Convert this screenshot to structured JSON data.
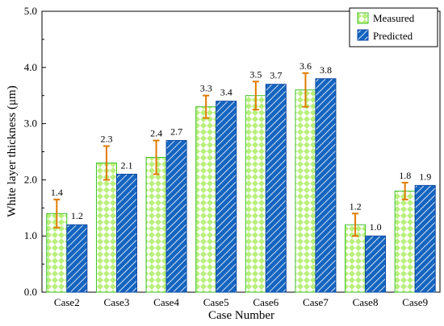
{
  "chart_data": {
    "type": "bar",
    "title": "",
    "xlabel": "Case Number",
    "ylabel": "White layer thickness (μm)",
    "ylim": [
      0,
      5.0
    ],
    "yticks": [
      "0.0",
      "1.0",
      "2.0",
      "3.0",
      "4.0",
      "5.0"
    ],
    "categories": [
      "Case2",
      "Case3",
      "Case4",
      "Case5",
      "Case6",
      "Case7",
      "Case8",
      "Case9"
    ],
    "series": [
      {
        "name": "Measured",
        "values": [
          1.4,
          2.3,
          2.4,
          3.3,
          3.5,
          3.6,
          1.2,
          1.8
        ],
        "labels": [
          "1.4",
          "2.3",
          "2.4",
          "3.3",
          "3.5",
          "3.6",
          "1.2",
          "1.8"
        ],
        "error": [
          0.25,
          0.3,
          0.3,
          0.2,
          0.25,
          0.3,
          0.2,
          0.15
        ],
        "fill_color": "#b8f07a",
        "edge_color": "#3fbf2a",
        "pattern": "diamond-check",
        "error_color": "#e07b00"
      },
      {
        "name": "Predicted",
        "values": [
          1.2,
          2.1,
          2.7,
          3.4,
          3.7,
          3.8,
          1.0,
          1.9
        ],
        "labels": [
          "1.2",
          "2.1",
          "2.7",
          "3.4",
          "3.7",
          "3.8",
          "1.0",
          "1.9"
        ],
        "fill_color": "#1565c0",
        "edge_color": "#0d47a1",
        "pattern": "diagonal-hatch"
      }
    ],
    "grid": false,
    "legend": "top-right"
  }
}
